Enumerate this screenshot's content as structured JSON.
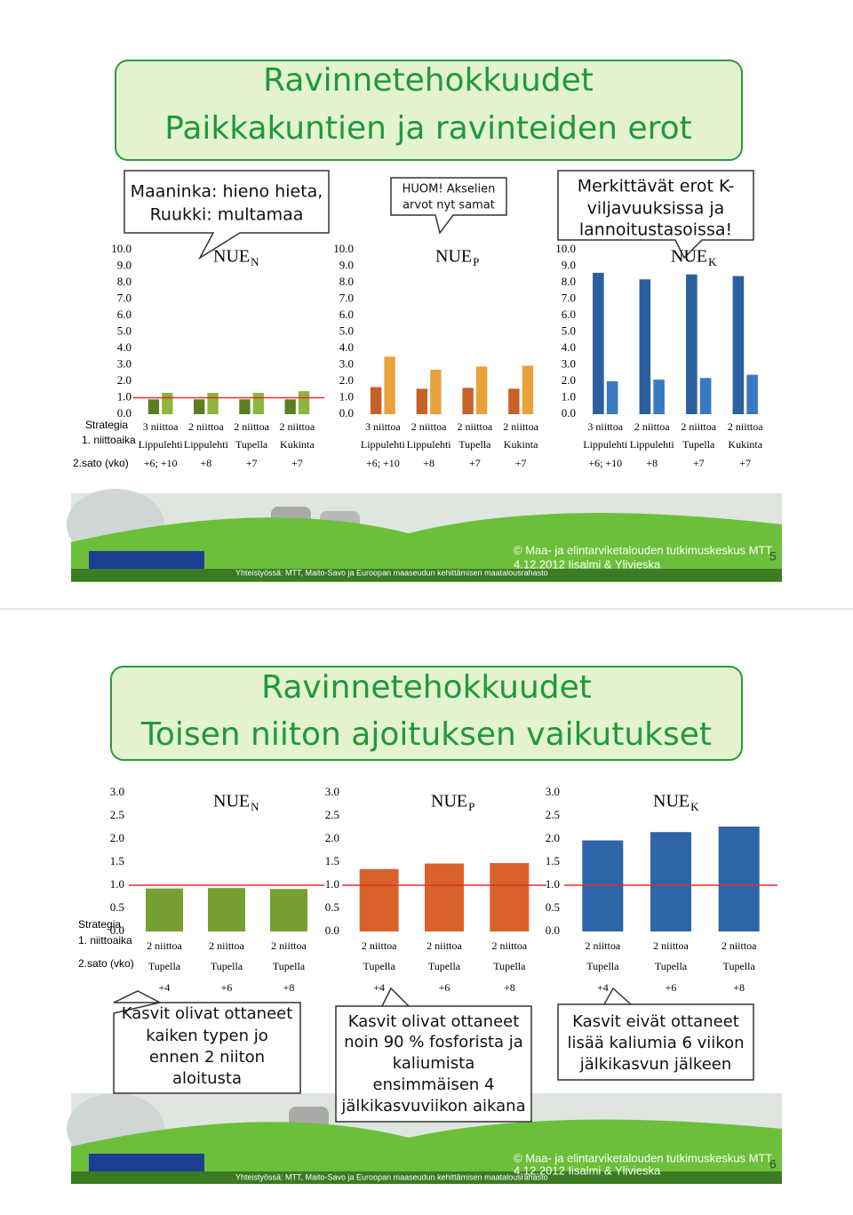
{
  "slides": [
    {
      "title": [
        "Ravinnetehokkuudet",
        "Paikkakuntien ja ravinteiden erot"
      ],
      "callouts": [
        [
          "Maaninka: hieno hieta,",
          "Ruukki: multamaa"
        ],
        [
          "HUOM! Akselien",
          "arvot nyt samat"
        ],
        [
          "Merkittävät erot K-",
          "viljavuuksissa ja",
          "lannoitustasoissa!"
        ]
      ],
      "row_labels": [
        "Strategia",
        "1. niittoaika",
        "2.sato (vko)"
      ],
      "partner_line": "Yhteistyössä: MTT, Maito-Savo ja Euroopan maaseudun kehittämisen maatalousrahasto",
      "copyright": "© Maa- ja elintarviketalouden tutkimuskeskus MTT",
      "date_place": "4.12.2012 Iisalmi & Ylivieska",
      "page": 5
    },
    {
      "title": [
        "Ravinnetehokkuudet",
        "Toisen niiton ajoituksen vaikutukset"
      ],
      "callouts": [
        [
          "Kasvit olivat ottaneet",
          "kaiken typen jo",
          "ennen 2 niiton",
          "aloitusta"
        ],
        [
          "Kasvit olivat ottaneet",
          "noin 90 % fosforista ja",
          "kaliumista",
          "ensimmäisen 4",
          "jälkikasvuviikon aikana"
        ],
        [
          "Kasvit eivät ottaneet",
          "lisää kaliumia 6 viikon",
          "jälkikasvun jälkeen"
        ]
      ],
      "row_labels": [
        "Strategia",
        "1. niittoaika",
        "2.sato (vko)"
      ],
      "partner_line": "Yhteistyössä: MTT, Maito-Savo ja Euroopan maaseudun kehittämisen maatalousrahasto",
      "copyright": "© Maa- ja elintarviketalouden tutkimuskeskus MTT",
      "date_place": "4.12.2012 Iisalmi & Ylivieska",
      "page": 6
    }
  ],
  "chart_data": [
    {
      "type": "bar",
      "title": "NUE",
      "title_sub": "N",
      "categories": [
        "3 niittoa",
        "2 niittoa",
        "2 niittoa",
        "2 niittoa"
      ],
      "categories_2": [
        "Lippulehti",
        "Lippulehti",
        "Tupella",
        "Kukinta"
      ],
      "categories_3": [
        "+6; +10",
        "+8",
        "+7",
        "+7"
      ],
      "series": [
        {
          "color": "#5b7d24",
          "values": [
            0.9,
            0.9,
            0.9,
            0.9
          ]
        },
        {
          "color": "#8cb63c",
          "values": [
            1.3,
            1.3,
            1.3,
            1.4
          ]
        }
      ],
      "ylim": [
        0,
        10
      ],
      "yticks": [
        {
          "value": 0,
          "label": "0.0"
        },
        {
          "value": 1,
          "label": "1.0"
        },
        {
          "value": 2,
          "label": "2.0"
        },
        {
          "value": 3,
          "label": "3.0"
        },
        {
          "value": 4,
          "label": "4.0"
        },
        {
          "value": 5,
          "label": "5.0"
        },
        {
          "value": 6,
          "label": "6.0"
        },
        {
          "value": 7,
          "label": "7.0"
        },
        {
          "value": 8,
          "label": "8.0"
        },
        {
          "value": 9,
          "label": "9.0"
        },
        {
          "value": 10,
          "label": "10.0"
        }
      ],
      "reference_line": 1
    },
    {
      "type": "bar",
      "title": "NUE",
      "title_sub": "P",
      "categories": [
        "3 niittoa",
        "2 niittoa",
        "2 niittoa",
        "2 niittoa"
      ],
      "categories_2": [
        "Lippulehti",
        "Lippulehti",
        "Tupella",
        "Kukinta"
      ],
      "categories_3": [
        "+6; +10",
        "+8",
        "+7",
        "+7"
      ],
      "series": [
        {
          "color": "#c8602a",
          "values": [
            1.65,
            1.55,
            1.6,
            1.55
          ]
        },
        {
          "color": "#e9a23b",
          "values": [
            3.5,
            2.7,
            2.9,
            2.95
          ]
        }
      ],
      "ylim": [
        0,
        10
      ],
      "yticks": [
        {
          "value": 0,
          "label": "0.0"
        },
        {
          "value": 1,
          "label": "1.0"
        },
        {
          "value": 2,
          "label": "2.0"
        },
        {
          "value": 3,
          "label": "3.0"
        },
        {
          "value": 4,
          "label": "4.0"
        },
        {
          "value": 5,
          "label": "5.0"
        },
        {
          "value": 6,
          "label": "6.0"
        },
        {
          "value": 7,
          "label": "7.0"
        },
        {
          "value": 8,
          "label": "8.0"
        },
        {
          "value": 9,
          "label": "9.0"
        },
        {
          "value": 10,
          "label": "10.0"
        }
      ]
    },
    {
      "type": "bar",
      "title": "NUE",
      "title_sub": "K",
      "categories": [
        "3 niittoa",
        "2 niittoa",
        "2 niittoa",
        "2 niittoa"
      ],
      "categories_2": [
        "Lippulehti",
        "Lippulehti",
        "Tupella",
        "Kukinta"
      ],
      "categories_3": [
        "+6; +10",
        "+8",
        "+7",
        "+7"
      ],
      "series": [
        {
          "color": "#2c5f9e",
          "values": [
            8.6,
            8.2,
            8.5,
            8.4
          ]
        },
        {
          "color": "#3a78c2",
          "values": [
            2.0,
            2.1,
            2.2,
            2.4
          ]
        }
      ],
      "ylim": [
        0,
        10
      ],
      "yticks": [
        {
          "value": 0,
          "label": "0.0"
        },
        {
          "value": 1,
          "label": "1.0"
        },
        {
          "value": 2,
          "label": "2.0"
        },
        {
          "value": 3,
          "label": "3.0"
        },
        {
          "value": 4,
          "label": "4.0"
        },
        {
          "value": 5,
          "label": "5.0"
        },
        {
          "value": 6,
          "label": "6.0"
        },
        {
          "value": 7,
          "label": "7.0"
        },
        {
          "value": 8,
          "label": "8.0"
        },
        {
          "value": 9,
          "label": "9.0"
        },
        {
          "value": 10,
          "label": "10.0"
        }
      ]
    },
    {
      "type": "bar",
      "title": "NUE",
      "title_sub": "N",
      "categories": [
        "2 niittoa",
        "2 niittoa",
        "2 niittoa"
      ],
      "categories_2": [
        "Tupella",
        "Tupella",
        "Tupella"
      ],
      "categories_3": [
        "+4",
        "+6",
        "+8"
      ],
      "series": [
        {
          "color": "#77a033",
          "values": [
            0.93,
            0.94,
            0.92
          ]
        }
      ],
      "ylim": [
        0,
        3
      ],
      "yticks": [
        {
          "value": 0,
          "label": "0.0"
        },
        {
          "value": 0.5,
          "label": "0.5"
        },
        {
          "value": 1,
          "label": "1.0"
        },
        {
          "value": 1.5,
          "label": "1.5"
        },
        {
          "value": 2,
          "label": "2.0"
        },
        {
          "value": 2.5,
          "label": "2.5"
        },
        {
          "value": 3,
          "label": "3.0"
        }
      ],
      "reference_line": 1
    },
    {
      "type": "bar",
      "title": "NUE",
      "title_sub": "P",
      "categories": [
        "2 niittoa",
        "2 niittoa",
        "2 niittoa"
      ],
      "categories_2": [
        "Tupella",
        "Tupella",
        "Tupella"
      ],
      "categories_3": [
        "+4",
        "+6",
        "+8"
      ],
      "series": [
        {
          "color": "#d9622b",
          "values": [
            1.35,
            1.47,
            1.48
          ]
        }
      ],
      "ylim": [
        0,
        3
      ],
      "yticks": [
        {
          "value": 0,
          "label": "0.0"
        },
        {
          "value": 0.5,
          "label": "0.5"
        },
        {
          "value": 1,
          "label": "1.0"
        },
        {
          "value": 1.5,
          "label": "1.5"
        },
        {
          "value": 2,
          "label": "2.0"
        },
        {
          "value": 2.5,
          "label": "2.5"
        },
        {
          "value": 3,
          "label": "3.0"
        }
      ],
      "reference_line": 1
    },
    {
      "type": "bar",
      "title": "NUE",
      "title_sub": "K",
      "categories": [
        "2 niittoa",
        "2 niittoa",
        "2 niittoa"
      ],
      "categories_2": [
        "Tupella",
        "Tupella",
        "Tupella"
      ],
      "categories_3": [
        "+4",
        "+6",
        "+8"
      ],
      "series": [
        {
          "color": "#2e64a8",
          "values": [
            1.97,
            2.15,
            2.27
          ]
        }
      ],
      "ylim": [
        0,
        3
      ],
      "yticks": [
        {
          "value": 0,
          "label": "0.0"
        },
        {
          "value": 0.5,
          "label": "0.5"
        },
        {
          "value": 1,
          "label": "1.0"
        },
        {
          "value": 1.5,
          "label": "1.5"
        },
        {
          "value": 2,
          "label": "2.0"
        },
        {
          "value": 2.5,
          "label": "2.5"
        },
        {
          "value": 3,
          "label": "3.0"
        }
      ],
      "reference_line": 1
    }
  ]
}
